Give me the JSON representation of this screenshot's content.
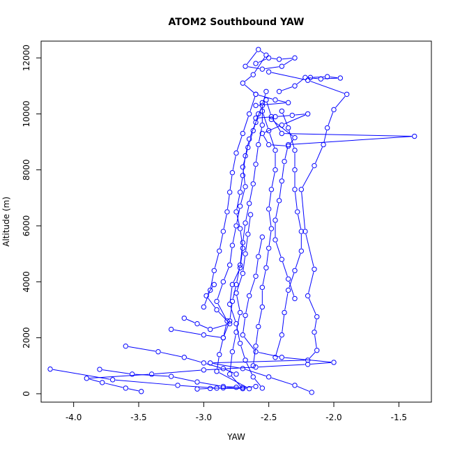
{
  "chart_data": {
    "type": "line",
    "title": "ATOM2 Southbound YAW",
    "xlabel": "YAW",
    "ylabel": "Altitude (m)",
    "xlim": [
      -4.25,
      -1.25
    ],
    "ylim": [
      -300,
      12600
    ],
    "x_ticks": [
      -4.0,
      -3.5,
      -3.0,
      -2.5,
      -2.0,
      -1.5
    ],
    "x_tick_labels": [
      "-4.0",
      "-3.5",
      "-3.0",
      "-2.5",
      "-2.0",
      "-1.5"
    ],
    "y_ticks": [
      0,
      2000,
      4000,
      6000,
      8000,
      10000,
      12000
    ],
    "y_tick_labels": [
      "0",
      "2000",
      "4000",
      "6000",
      "8000",
      "10000",
      "12000"
    ],
    "marker": "open-circle",
    "color": "#0000ff",
    "grid": false,
    "series": [
      {
        "points": [
          [
            -2.55,
            200
          ],
          [
            -2.62,
            600
          ],
          [
            -2.68,
            1200
          ],
          [
            -2.72,
            1800
          ],
          [
            -2.75,
            2500
          ],
          [
            -2.8,
            3200
          ],
          [
            -2.78,
            3900
          ],
          [
            -2.72,
            4500
          ],
          [
            -2.7,
            5200
          ],
          [
            -2.72,
            5900
          ],
          [
            -2.75,
            6500
          ],
          [
            -2.72,
            7200
          ],
          [
            -2.7,
            7800
          ],
          [
            -2.68,
            8500
          ],
          [
            -2.65,
            9100
          ],
          [
            -2.6,
            9700
          ],
          [
            -2.55,
            10300
          ],
          [
            -2.52,
            10800
          ]
        ]
      },
      {
        "points": [
          [
            -3.05,
            170
          ],
          [
            -2.95,
            190
          ],
          [
            -2.85,
            210
          ],
          [
            -2.75,
            230
          ],
          [
            -2.65,
            180
          ],
          [
            -2.9,
            800
          ],
          [
            -2.88,
            1400
          ],
          [
            -2.85,
            2000
          ],
          [
            -2.82,
            2600
          ],
          [
            -2.9,
            3300
          ],
          [
            -2.85,
            4000
          ],
          [
            -2.8,
            4600
          ],
          [
            -2.78,
            5300
          ],
          [
            -2.75,
            6000
          ],
          [
            -2.72,
            6700
          ],
          [
            -2.68,
            7400
          ],
          [
            -2.7,
            8100
          ],
          [
            -2.66,
            8800
          ],
          [
            -2.62,
            9400
          ],
          [
            -2.58,
            10000
          ]
        ]
      },
      {
        "points": [
          [
            -4.18,
            880
          ],
          [
            -3.7,
            500
          ],
          [
            -3.2,
            300
          ],
          [
            -2.9,
            200
          ],
          [
            -2.7,
            180
          ],
          [
            -2.8,
            700
          ],
          [
            -2.78,
            1500
          ],
          [
            -2.75,
            2200
          ],
          [
            -2.72,
            2900
          ],
          [
            -2.75,
            3600
          ],
          [
            -2.7,
            4300
          ],
          [
            -2.68,
            5000
          ],
          [
            -2.66,
            5700
          ],
          [
            -2.64,
            6400
          ]
        ]
      },
      {
        "points": [
          [
            -3.48,
            80
          ],
          [
            -3.6,
            200
          ],
          [
            -3.78,
            400
          ],
          [
            -3.9,
            550
          ],
          [
            -3.4,
            700
          ],
          [
            -3.0,
            850
          ],
          [
            -2.6,
            950
          ],
          [
            -2.2,
            1050
          ],
          [
            -2.0,
            1120
          ],
          [
            -2.4,
            1300
          ],
          [
            -2.6,
            1500
          ],
          [
            -2.7,
            2100
          ],
          [
            -2.68,
            2800
          ],
          [
            -2.65,
            3500
          ],
          [
            -2.6,
            4200
          ],
          [
            -2.58,
            4900
          ],
          [
            -2.55,
            5600
          ]
        ]
      },
      {
        "points": [
          [
            -3.25,
            2300
          ],
          [
            -3.0,
            2100
          ],
          [
            -2.85,
            2000
          ],
          [
            -2.8,
            2600
          ],
          [
            -2.78,
            3300
          ],
          [
            -2.75,
            3900
          ],
          [
            -2.72,
            4600
          ],
          [
            -2.7,
            5400
          ],
          [
            -2.68,
            6100
          ],
          [
            -2.65,
            6800
          ],
          [
            -2.62,
            7500
          ],
          [
            -2.6,
            8200
          ],
          [
            -2.58,
            8900
          ],
          [
            -2.55,
            9600
          ],
          [
            -2.55,
            10400
          ]
        ]
      },
      {
        "points": [
          [
            -3.0,
            3100
          ],
          [
            -2.95,
            3700
          ],
          [
            -2.92,
            4400
          ],
          [
            -2.88,
            5100
          ],
          [
            -2.85,
            5800
          ],
          [
            -2.82,
            6500
          ],
          [
            -2.8,
            7200
          ],
          [
            -2.78,
            7900
          ],
          [
            -2.75,
            8600
          ],
          [
            -2.7,
            9300
          ],
          [
            -2.65,
            10000
          ],
          [
            -2.6,
            10700
          ]
        ]
      },
      {
        "points": [
          [
            -2.3,
            3400
          ],
          [
            -2.35,
            4100
          ],
          [
            -2.4,
            4800
          ],
          [
            -2.45,
            5500
          ],
          [
            -2.45,
            6200
          ],
          [
            -2.42,
            6900
          ],
          [
            -2.4,
            7600
          ],
          [
            -2.38,
            8300
          ],
          [
            -2.35,
            8900
          ],
          [
            -1.38,
            9200
          ],
          [
            -2.4,
            9300
          ],
          [
            -2.48,
            9900
          ],
          [
            -2.52,
            10500
          ]
        ]
      },
      {
        "points": [
          [
            -2.45,
            1300
          ],
          [
            -2.4,
            2100
          ],
          [
            -2.38,
            2900
          ],
          [
            -2.35,
            3700
          ],
          [
            -2.3,
            4400
          ],
          [
            -2.25,
            5100
          ],
          [
            -2.25,
            5800
          ],
          [
            -2.28,
            6500
          ],
          [
            -2.3,
            7300
          ],
          [
            -2.3,
            8000
          ],
          [
            -2.3,
            8700
          ],
          [
            -2.35,
            9500
          ],
          [
            -2.4,
            10100
          ]
        ]
      },
      {
        "points": [
          [
            -2.17,
            50
          ],
          [
            -2.3,
            300
          ],
          [
            -2.5,
            600
          ],
          [
            -2.7,
            900
          ],
          [
            -2.95,
            1100
          ],
          [
            -2.2,
            1200
          ],
          [
            -2.13,
            1550
          ],
          [
            -2.15,
            2200
          ],
          [
            -2.13,
            2750
          ],
          [
            -2.2,
            3500
          ],
          [
            -2.15,
            4450
          ],
          [
            -2.22,
            5800
          ],
          [
            -2.25,
            7300
          ],
          [
            -2.15,
            8150
          ],
          [
            -2.08,
            8900
          ],
          [
            -2.05,
            9500
          ],
          [
            -2.0,
            10150
          ],
          [
            -1.9,
            10700
          ],
          [
            -2.2,
            11200
          ],
          [
            -2.5,
            11500
          ]
        ]
      },
      {
        "points": [
          [
            -2.6,
            11800
          ],
          [
            -2.5,
            12000
          ],
          [
            -2.42,
            11950
          ],
          [
            -2.3,
            12000
          ],
          [
            -2.4,
            11700
          ],
          [
            -2.55,
            11600
          ],
          [
            -2.68,
            11700
          ],
          [
            -2.58,
            12300
          ],
          [
            -2.52,
            12100
          ],
          [
            -2.62,
            11400
          ],
          [
            -2.7,
            11100
          ],
          [
            -2.6,
            10700
          ],
          [
            -2.45,
            10500
          ],
          [
            -2.35,
            10400
          ],
          [
            -2.6,
            10300
          ]
        ]
      },
      {
        "points": [
          [
            -2.6,
            9850
          ],
          [
            -2.45,
            9900
          ],
          [
            -2.32,
            9950
          ],
          [
            -2.2,
            10000
          ],
          [
            -2.4,
            9600
          ],
          [
            -2.55,
            9300
          ],
          [
            -2.5,
            8900
          ],
          [
            -2.35,
            8850
          ],
          [
            -2.3,
            9150
          ],
          [
            -2.48,
            9800
          ]
        ]
      },
      {
        "points": [
          [
            -2.18,
            11300
          ],
          [
            -2.05,
            11330
          ],
          [
            -1.95,
            11280
          ],
          [
            -2.1,
            11250
          ],
          [
            -2.22,
            11300
          ],
          [
            -2.3,
            11000
          ],
          [
            -2.42,
            10800
          ]
        ]
      },
      {
        "points": [
          [
            -3.8,
            870
          ],
          [
            -3.55,
            700
          ],
          [
            -3.25,
            620
          ],
          [
            -3.05,
            420
          ],
          [
            -2.85,
            260
          ],
          [
            -2.7,
            220
          ],
          [
            -2.6,
            260
          ]
        ]
      },
      {
        "points": [
          [
            -3.6,
            1700
          ],
          [
            -3.35,
            1500
          ],
          [
            -3.15,
            1300
          ],
          [
            -3.0,
            1100
          ],
          [
            -2.85,
            900
          ],
          [
            -2.75,
            700
          ]
        ]
      },
      {
        "points": [
          [
            -3.15,
            2700
          ],
          [
            -3.05,
            2500
          ],
          [
            -2.95,
            2300
          ],
          [
            -2.8,
            2500
          ],
          [
            -2.9,
            3000
          ],
          [
            -2.98,
            3500
          ],
          [
            -2.92,
            3900
          ]
        ]
      },
      {
        "points": [
          [
            -2.62,
            1000
          ],
          [
            -2.6,
            1700
          ],
          [
            -2.58,
            2400
          ],
          [
            -2.55,
            3100
          ],
          [
            -2.55,
            3800
          ],
          [
            -2.52,
            4500
          ],
          [
            -2.5,
            5200
          ],
          [
            -2.48,
            5900
          ],
          [
            -2.5,
            6600
          ],
          [
            -2.48,
            7300
          ],
          [
            -2.45,
            8000
          ],
          [
            -2.45,
            8700
          ],
          [
            -2.5,
            9400
          ],
          [
            -2.55,
            10100
          ]
        ]
      }
    ]
  }
}
